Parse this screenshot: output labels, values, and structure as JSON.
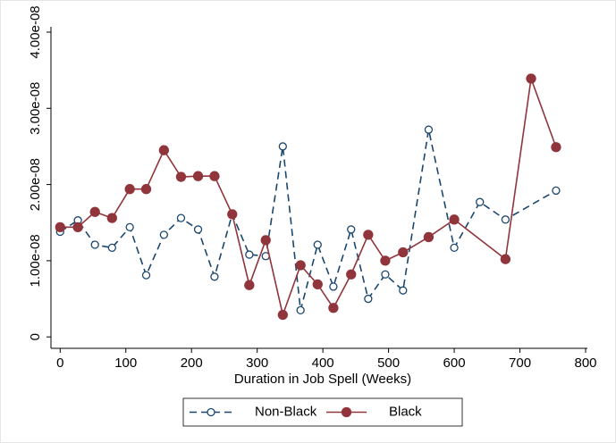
{
  "chart_data": {
    "type": "line",
    "xlabel": "Duration in Job Spell (Weeks)",
    "xlim": [
      -14,
      800
    ],
    "xticks": [
      0,
      100,
      200,
      300,
      400,
      500,
      600,
      700,
      800
    ],
    "ylim": [
      -1.5e-09,
      4.07e-08
    ],
    "yticks": [
      0,
      {
        "value": 1e-08,
        "label": "1.00e-08"
      },
      {
        "value": 2e-08,
        "label": "2.00e-08"
      },
      {
        "value": 3e-08,
        "label": "3.00e-08"
      },
      {
        "value": 4e-08,
        "label": "4.00e-08"
      }
    ],
    "legend": "bottom",
    "series": [
      {
        "name": "Non-Black",
        "color": "#1a476f",
        "dash": true,
        "marker": "hollow",
        "x": [
          0,
          27,
          53,
          79,
          106,
          131,
          158,
          184,
          210,
          235,
          262,
          288,
          313,
          339,
          366,
          392,
          416,
          443,
          469,
          495,
          522,
          561,
          600,
          639,
          678,
          755
        ],
        "values": [
          1.38e-08,
          1.53e-08,
          1.21e-08,
          1.17e-08,
          1.44e-08,
          8.1e-09,
          1.34e-08,
          1.56e-08,
          1.41e-08,
          7.9e-09,
          1.61e-08,
          1.08e-08,
          1.06e-08,
          2.5e-08,
          3.5e-09,
          1.21e-08,
          6.6e-09,
          1.41e-08,
          5e-09,
          8.2e-09,
          6.1e-09,
          2.72e-08,
          1.17e-08,
          1.77e-08,
          1.54e-08,
          1.92e-08
        ]
      },
      {
        "name": "Black",
        "color": "#90353b",
        "dash": false,
        "marker": "filled",
        "x": [
          0,
          27,
          53,
          79,
          106,
          131,
          158,
          184,
          210,
          235,
          262,
          288,
          313,
          339,
          366,
          392,
          416,
          443,
          469,
          495,
          522,
          561,
          600,
          678,
          717,
          755
        ],
        "values": [
          1.44e-08,
          1.44e-08,
          1.64e-08,
          1.56e-08,
          1.94e-08,
          1.94e-08,
          2.45e-08,
          2.1e-08,
          2.11e-08,
          2.11e-08,
          1.61e-08,
          6.8e-09,
          1.27e-08,
          2.9e-09,
          9.4e-09,
          6.9e-09,
          3.8e-09,
          8.2e-09,
          1.34e-08,
          1e-08,
          1.11e-08,
          1.31e-08,
          1.54e-08,
          1.02e-08,
          3.39e-08,
          2.49e-08
        ]
      }
    ]
  }
}
